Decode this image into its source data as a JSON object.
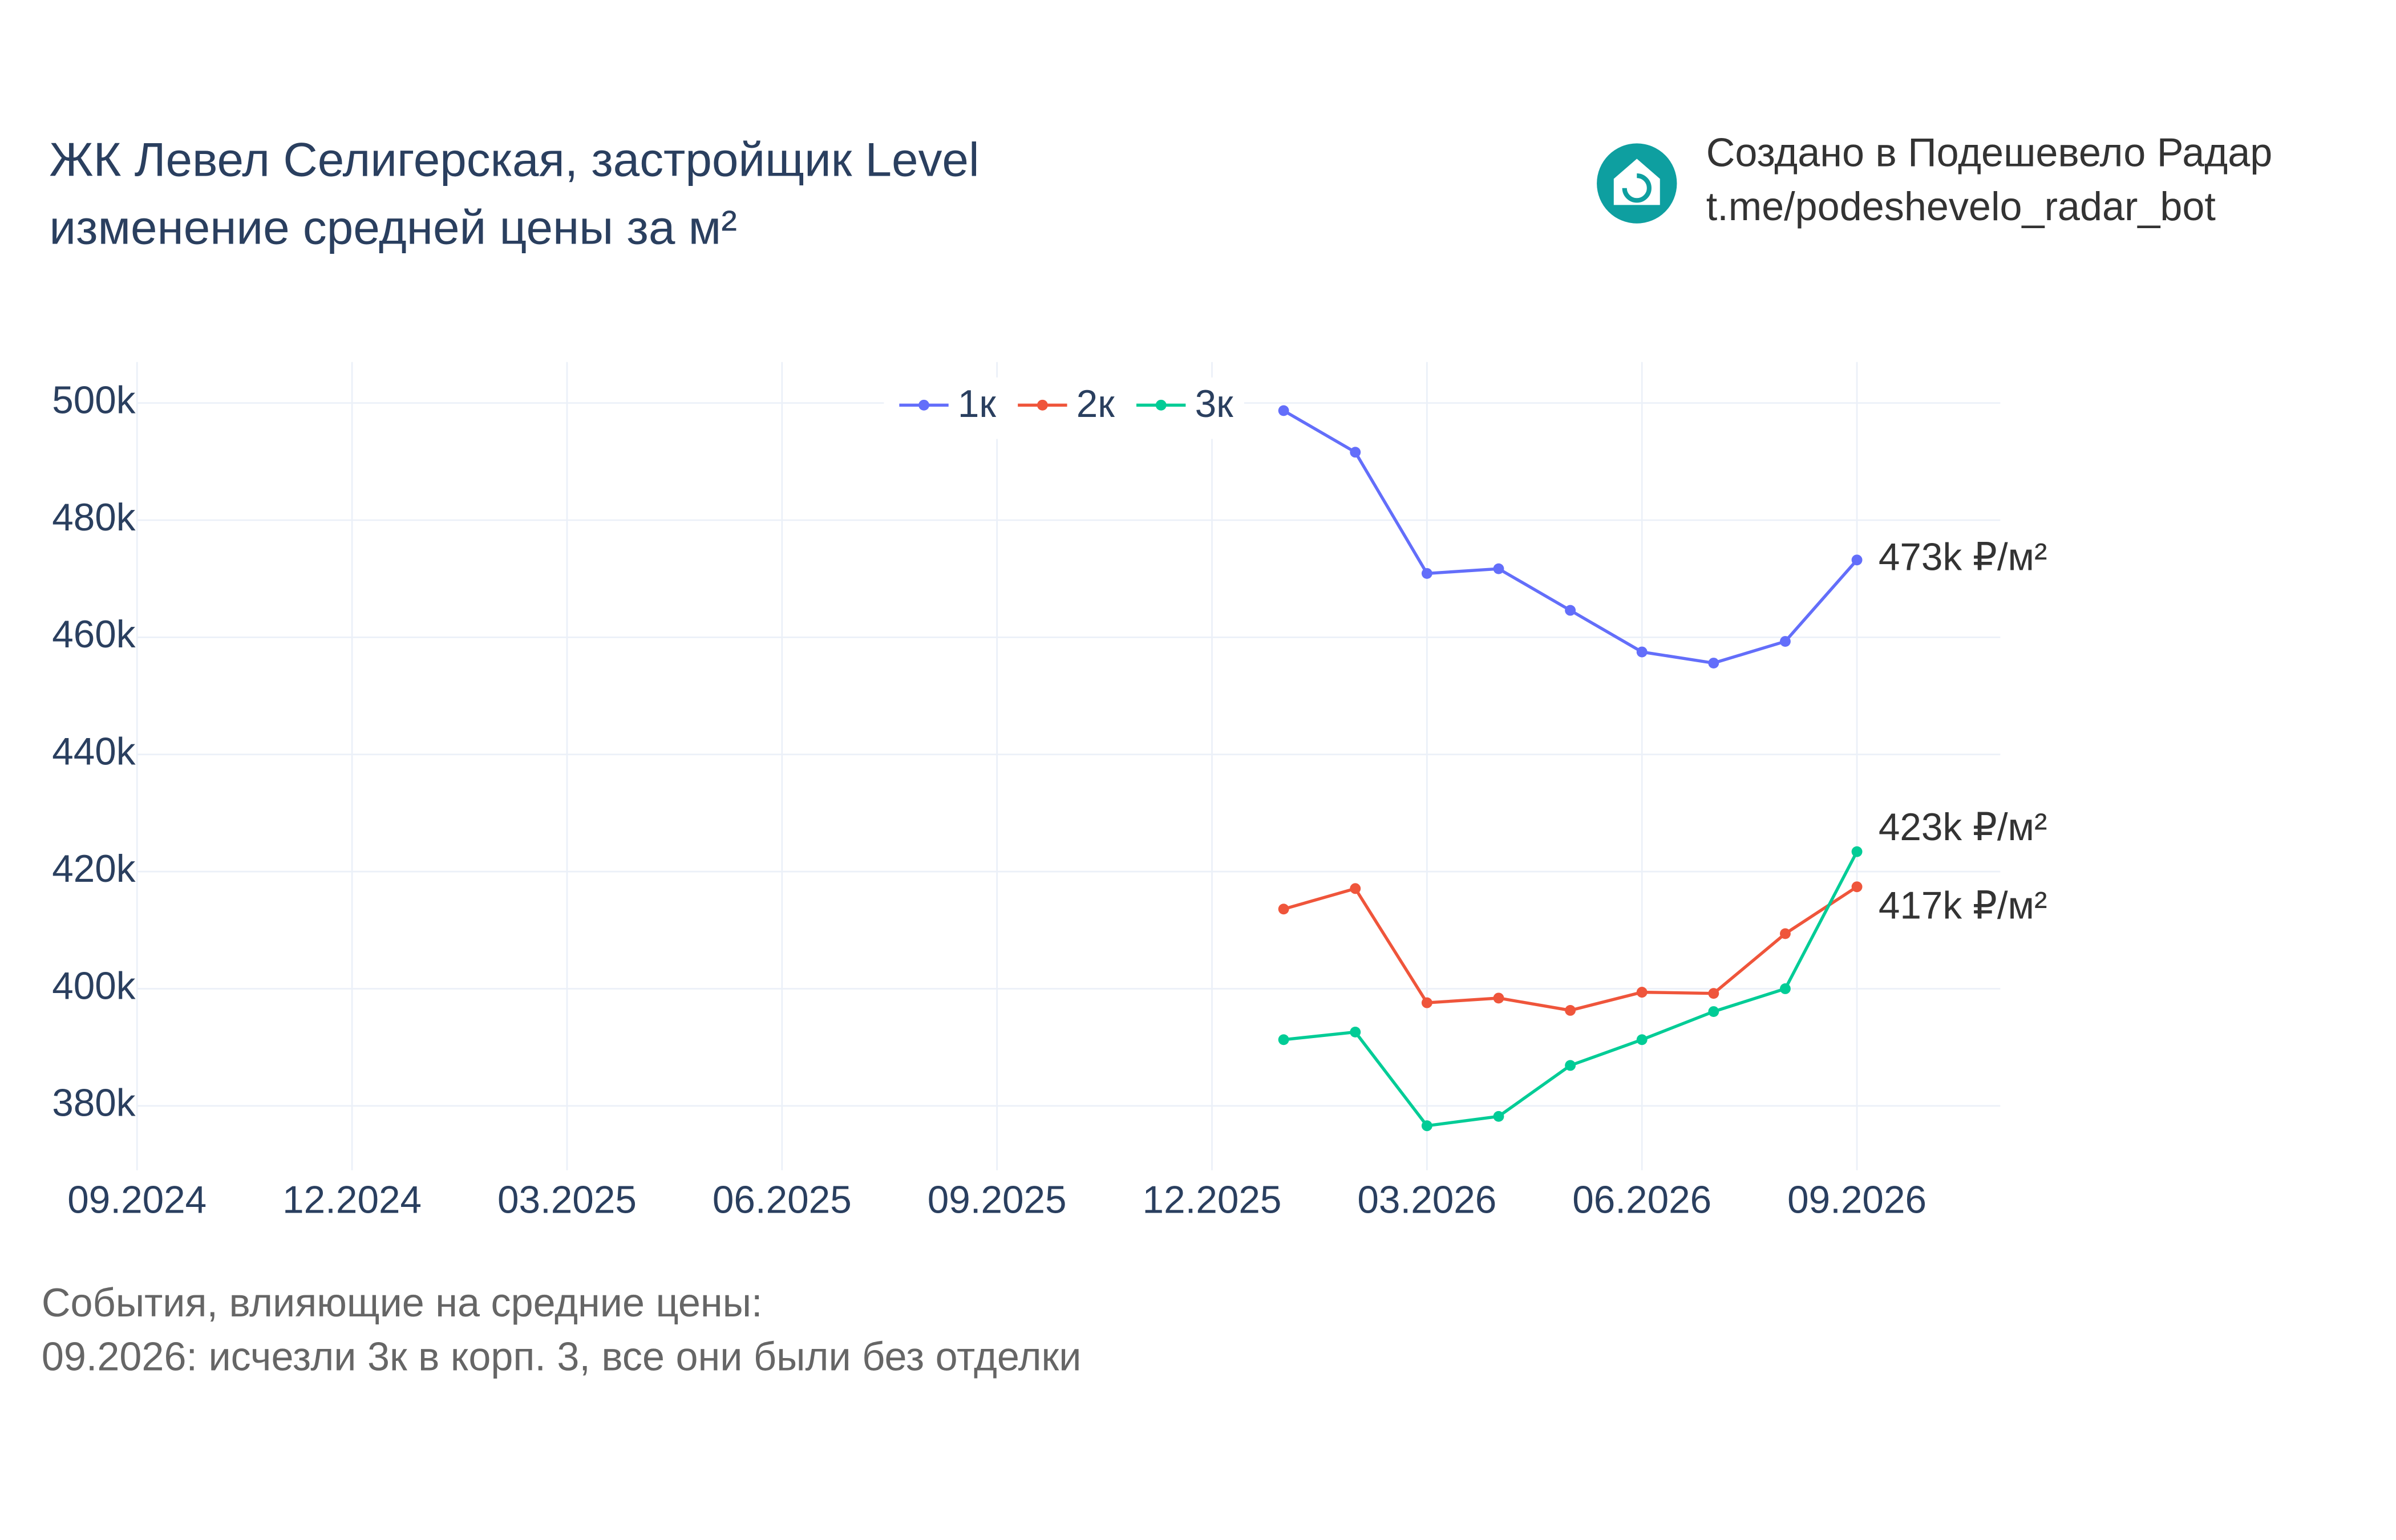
{
  "chart_data": {
    "type": "line",
    "title": "ЖК Левел Селигерская, застройщик Level",
    "subtitle": "изменение средней цены за м²",
    "brand": [
      "Создано в Подешевело Радар",
      "t.me/podeshevelo_radar_bot"
    ],
    "notes": [
      "События, влияющие на средние цены:",
      "09.2026: исчезли 3к в корп. 3, все они были без отделки"
    ],
    "x": [
      "01.2026",
      "02.2026",
      "03.2026",
      "04.2026",
      "05.2026",
      "06.2026",
      "07.2026",
      "08.2026",
      "09.2026"
    ],
    "series": [
      {
        "name": "1к",
        "color": "#636efa",
        "values": [
          498700,
          491600,
          470900,
          471700,
          464600,
          457500,
          455600,
          459300,
          473200
        ],
        "end_label": "473k ₽/м²"
      },
      {
        "name": "2к",
        "color": "#ef553b",
        "values": [
          413600,
          417100,
          397600,
          398400,
          396300,
          399400,
          399200,
          409400,
          417400
        ],
        "end_label": "417k ₽/м²"
      },
      {
        "name": "3к",
        "color": "#00cc96",
        "values": [
          391300,
          392600,
          376600,
          378200,
          386900,
          391300,
          396100,
          400000,
          423400
        ],
        "end_label": "423k ₽/м²"
      }
    ],
    "xlim": [
      "09.2024",
      "11.2026"
    ],
    "xticks": [
      "09.2024",
      "12.2024",
      "03.2025",
      "06.2025",
      "09.2025",
      "12.2025",
      "03.2026",
      "06.2026",
      "09.2026"
    ],
    "ylim": [
      369000,
      507000
    ],
    "yticks": [
      {
        "value": 380000,
        "label": "380k"
      },
      {
        "value": 400000,
        "label": "400k"
      },
      {
        "value": 420000,
        "label": "420k"
      },
      {
        "value": 440000,
        "label": "440k"
      },
      {
        "value": 460000,
        "label": "460k"
      },
      {
        "value": 480000,
        "label": "480k"
      },
      {
        "value": 500000,
        "label": "500k"
      }
    ],
    "grid": true,
    "legend": "top"
  }
}
